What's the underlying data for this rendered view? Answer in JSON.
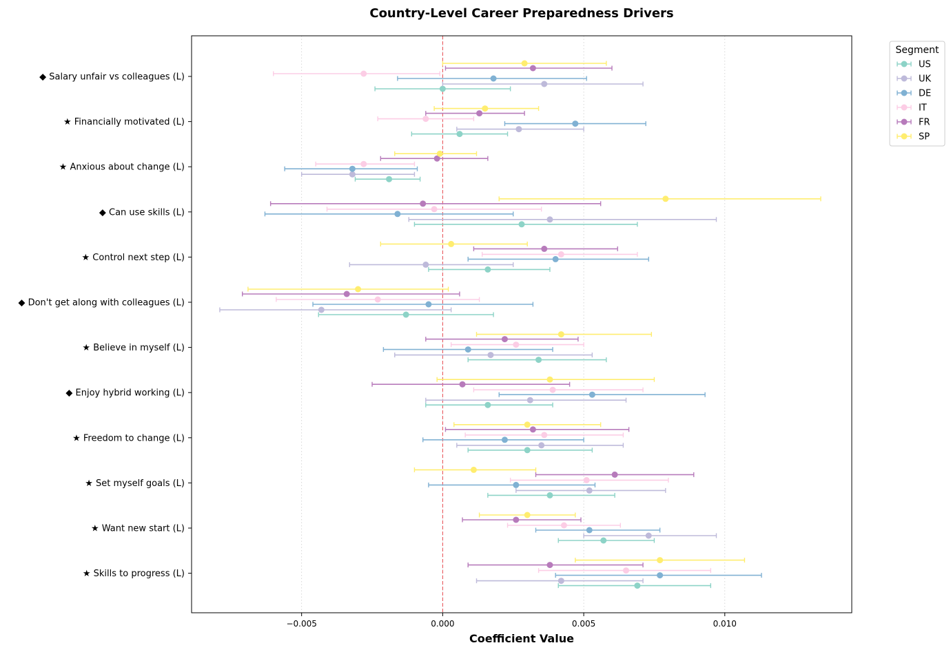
{
  "chart_data": {
    "type": "forest",
    "title": "Country-Level Career Preparedness Drivers",
    "xlabel": "Coefficient Value",
    "ylabel": "",
    "xlim": [
      -0.0089,
      0.0145
    ],
    "xticks": [
      -0.005,
      0.0,
      0.005,
      0.01
    ],
    "xtick_labels": [
      "−0.005",
      "0.000",
      "0.005",
      "0.010"
    ],
    "grid": "vertical dotted",
    "reference_line": 0,
    "legend": {
      "title": "Segment",
      "position": "top-right outside"
    },
    "categories": [
      "◆ Salary unfair vs colleagues (L)",
      "★ Financially motivated (L)",
      "★ Anxious about change (L)",
      "◆ Can use skills (L)",
      "★ Control next step (L)",
      "◆ Don't get along with colleagues (L)",
      "★ Believe in myself (L)",
      "◆ Enjoy hybrid working (L)",
      "★ Freedom to change (L)",
      "★ Set myself goals (L)",
      "★ Want new start (L)",
      "★ Skills to progress (L)"
    ],
    "series": [
      {
        "name": "US",
        "color": "#8dd3c7",
        "points": [
          [
            0.0,
            -0.0024,
            0.0024
          ],
          [
            0.0006,
            -0.0011,
            0.0023
          ],
          [
            -0.0019,
            -0.0031,
            -0.0008
          ],
          [
            0.0028,
            -0.001,
            0.0069
          ],
          [
            0.0016,
            -0.0005,
            0.0038
          ],
          [
            -0.0013,
            -0.0044,
            0.0018
          ],
          [
            0.0034,
            0.0009,
            0.0058
          ],
          [
            0.0016,
            -0.0006,
            0.0039
          ],
          [
            0.003,
            0.0009,
            0.0053
          ],
          [
            0.0038,
            0.0016,
            0.0061
          ],
          [
            0.0057,
            0.0041,
            0.0075
          ],
          [
            0.0069,
            0.0041,
            0.0095
          ]
        ]
      },
      {
        "name": "UK",
        "color": "#bebada",
        "points": [
          [
            0.0036,
            0.0,
            0.0071
          ],
          [
            0.0027,
            0.0005,
            0.005
          ],
          [
            -0.0032,
            -0.005,
            -0.001
          ],
          [
            0.0038,
            -0.0012,
            0.0097
          ],
          [
            -0.0006,
            -0.0033,
            0.0025
          ],
          [
            -0.0043,
            -0.0079,
            0.0003
          ],
          [
            0.0017,
            -0.0017,
            0.0053
          ],
          [
            0.0031,
            -0.0006,
            0.0065
          ],
          [
            0.0035,
            0.0005,
            0.0064
          ],
          [
            0.0052,
            0.0026,
            0.0079
          ],
          [
            0.0073,
            0.005,
            0.0097
          ],
          [
            0.0042,
            0.0012,
            0.0071
          ]
        ]
      },
      {
        "name": "DE",
        "color": "#80b1d3",
        "points": [
          [
            0.0018,
            -0.0016,
            0.0051
          ],
          [
            0.0047,
            0.0022,
            0.0072
          ],
          [
            -0.0032,
            -0.0056,
            -0.0009
          ],
          [
            -0.0016,
            -0.0063,
            0.0025
          ],
          [
            0.004,
            0.0009,
            0.0073
          ],
          [
            -0.0005,
            -0.0046,
            0.0032
          ],
          [
            0.0009,
            -0.0021,
            0.0039
          ],
          [
            0.0053,
            0.002,
            0.0093
          ],
          [
            0.0022,
            -0.0007,
            0.005
          ],
          [
            0.0026,
            -0.0005,
            0.0054
          ],
          [
            0.0052,
            0.0033,
            0.0077
          ],
          [
            0.0077,
            0.004,
            0.0113
          ]
        ]
      },
      {
        "name": "IT",
        "color": "#fccde5",
        "points": [
          [
            -0.0028,
            -0.006,
            -0.0001
          ],
          [
            -0.0006,
            -0.0023,
            0.0011
          ],
          [
            -0.0028,
            -0.0045,
            -0.001
          ],
          [
            -0.0003,
            -0.0041,
            0.0035
          ],
          [
            0.0042,
            0.0014,
            0.0069
          ],
          [
            -0.0023,
            -0.0059,
            0.0013
          ],
          [
            0.0026,
            0.0003,
            0.005
          ],
          [
            0.0039,
            0.0011,
            0.0071
          ],
          [
            0.0036,
            0.0008,
            0.0064
          ],
          [
            0.0051,
            0.0024,
            0.008
          ],
          [
            0.0043,
            0.0023,
            0.0063
          ],
          [
            0.0065,
            0.0034,
            0.0095
          ]
        ]
      },
      {
        "name": "FR",
        "color": "#b77bbb",
        "points": [
          [
            0.0032,
            0.0001,
            0.006
          ],
          [
            0.0013,
            -0.0006,
            0.0029
          ],
          [
            -0.0002,
            -0.0022,
            0.0016
          ],
          [
            -0.0007,
            -0.0061,
            0.0056
          ],
          [
            0.0036,
            0.0011,
            0.0062
          ],
          [
            -0.0034,
            -0.0071,
            0.0006
          ],
          [
            0.0022,
            -0.0006,
            0.0048
          ],
          [
            0.0007,
            -0.0025,
            0.0045
          ],
          [
            0.0032,
            0.0001,
            0.0066
          ],
          [
            0.0061,
            0.0033,
            0.0089
          ],
          [
            0.0026,
            0.0007,
            0.0049
          ],
          [
            0.0038,
            0.0009,
            0.0071
          ]
        ]
      },
      {
        "name": "SP",
        "color": "#ffed6f",
        "points": [
          [
            0.0029,
            0.0,
            0.0058
          ],
          [
            0.0015,
            -0.0003,
            0.0034
          ],
          [
            -0.0001,
            -0.0017,
            0.0012
          ],
          [
            0.0079,
            0.002,
            0.0134
          ],
          [
            0.0003,
            -0.0022,
            0.003
          ],
          [
            -0.003,
            -0.0069,
            0.0002
          ],
          [
            0.0042,
            0.0012,
            0.0074
          ],
          [
            0.0038,
            -0.0002,
            0.0075
          ],
          [
            0.003,
            0.0004,
            0.0056
          ],
          [
            0.0011,
            -0.001,
            0.0033
          ],
          [
            0.003,
            0.0013,
            0.0047
          ],
          [
            0.0077,
            0.0047,
            0.0107
          ]
        ]
      }
    ]
  }
}
